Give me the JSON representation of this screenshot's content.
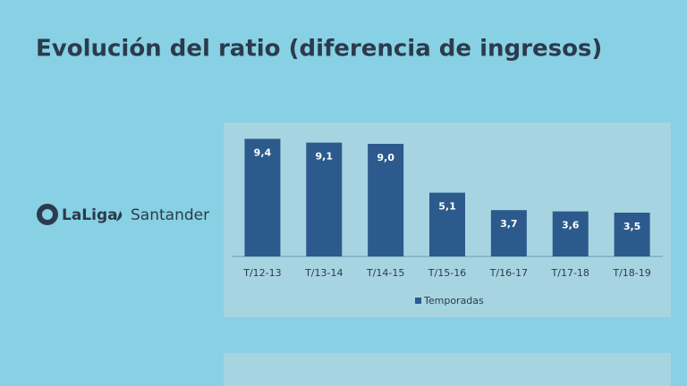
{
  "chart_data": {
    "type": "bar",
    "title": "Evolución del ratio (diferencia de ingresos)",
    "categories": [
      "T/12-13",
      "T/13-14",
      "T/14-15",
      "T/15-16",
      "T/16-17",
      "T/17-18",
      "T/18-19"
    ],
    "series": [
      {
        "name": "Temporadas",
        "color": "#2c5a8c",
        "values": [
          9.4,
          9.1,
          9.0,
          5.1,
          3.7,
          3.6,
          3.5
        ],
        "value_labels": [
          "9,4",
          "9,1",
          "9,0",
          "5,1",
          "3,7",
          "3,6",
          "3,5"
        ]
      }
    ],
    "ylim": [
      0,
      10
    ],
    "legend": "bottom"
  },
  "logo": [
    "LaLiga",
    "Santander"
  ]
}
